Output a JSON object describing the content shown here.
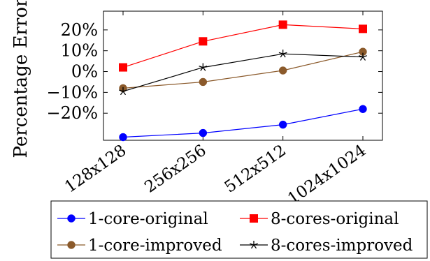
{
  "chart_data": {
    "type": "line",
    "title": "",
    "xlabel": "",
    "ylabel": "Percentage Error",
    "categories": [
      "128x128",
      "256x256",
      "512x512",
      "1024x1024"
    ],
    "ylim": [
      -33,
      29
    ],
    "yticks": [
      -20,
      -10,
      0,
      10,
      20
    ],
    "ytick_labels": [
      "−20%",
      "−10%",
      "0%",
      "10%",
      "20%"
    ],
    "grid": false,
    "legend_position": "bottom",
    "series": [
      {
        "name": "1-core-original",
        "color": "#0000ff",
        "marker": "circle",
        "values": [
          -31.5,
          -29.5,
          -25.5,
          -18.0
        ]
      },
      {
        "name": "8-cores-original",
        "color": "#ff0000",
        "marker": "square",
        "values": [
          2.0,
          14.5,
          22.5,
          20.5
        ]
      },
      {
        "name": "1-core-improved",
        "color": "#8b5a2b",
        "marker": "circle",
        "values": [
          -8.0,
          -5.0,
          0.5,
          9.5
        ]
      },
      {
        "name": "8-cores-improved",
        "color": "#000000",
        "marker": "star",
        "values": [
          -9.5,
          2.0,
          8.5,
          7.0
        ]
      }
    ]
  }
}
